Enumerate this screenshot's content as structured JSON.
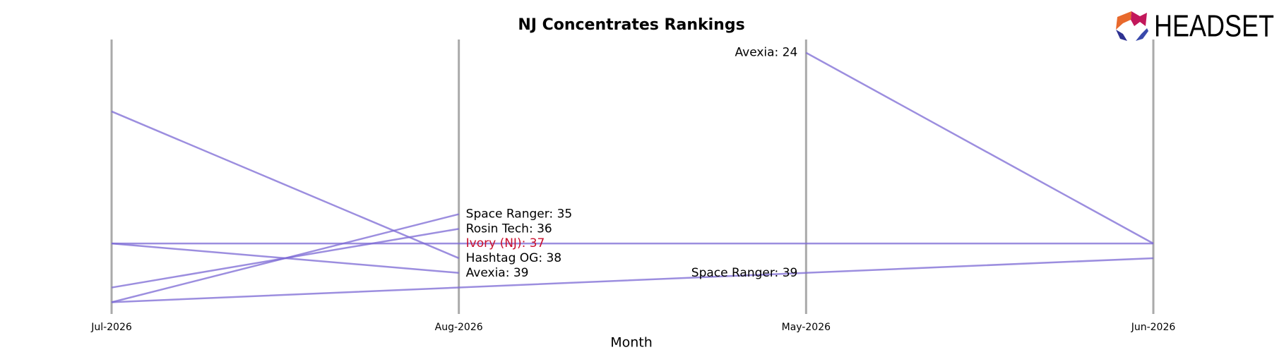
{
  "logo": "HEADSET",
  "chart_data": {
    "type": "bump",
    "title": "NJ Concentrates Rankings",
    "x_label": "Month",
    "categories": [
      "Jul-2026",
      "Aug-2026",
      "May-2026",
      "Jun-2026"
    ],
    "ylim": [
      23.1,
      41.8
    ],
    "inverted": true,
    "grid": true,
    "line_color": "#7b68d4",
    "series": [
      {
        "name": "Hashtag OG",
        "values": [
          28,
          38,
          null,
          null
        ]
      },
      {
        "name": "Ivory (NJ)",
        "values": [
          37,
          37,
          37,
          37
        ]
      },
      {
        "name": "Avexia",
        "values": [
          37,
          39,
          null,
          null
        ]
      },
      {
        "name": "Avexia",
        "values": [
          null,
          null,
          24,
          37
        ]
      },
      {
        "name": "Rosin Tech",
        "values": [
          40,
          36,
          null,
          null
        ]
      },
      {
        "name": "Space Ranger",
        "values": [
          41,
          35,
          null,
          null
        ]
      },
      {
        "name": "Space Ranger",
        "values": [
          41,
          40,
          39,
          38
        ]
      }
    ],
    "annotations": [
      {
        "text": "Space Ranger: 35",
        "x": "Aug-2026",
        "y": 35,
        "side": "right"
      },
      {
        "text": "Rosin Tech: 36",
        "x": "Aug-2026",
        "y": 36,
        "side": "right"
      },
      {
        "text": "Ivory (NJ): 37",
        "x": "Aug-2026",
        "y": 37,
        "side": "right",
        "color": "#c8102e"
      },
      {
        "text": "Hashtag OG: 38",
        "x": "Aug-2026",
        "y": 38,
        "side": "right"
      },
      {
        "text": "Avexia: 39",
        "x": "Aug-2026",
        "y": 39,
        "side": "right"
      },
      {
        "text": "Avexia: 24",
        "x": "May-2026",
        "y": 24,
        "side": "left"
      },
      {
        "text": "Space Ranger: 39",
        "x": "May-2026",
        "y": 39,
        "side": "left"
      }
    ]
  }
}
